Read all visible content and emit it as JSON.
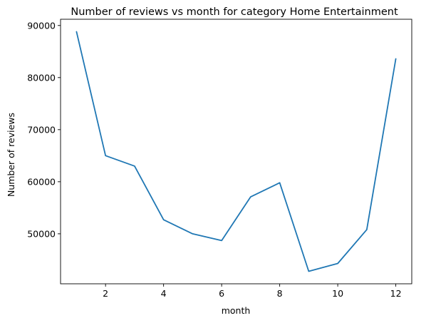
{
  "chart_data": {
    "type": "line",
    "title": "Number of reviews vs month for category Home Entertainment",
    "xlabel": "month",
    "ylabel": "Number of reviews",
    "xlim": [
      0.45,
      12.55
    ],
    "ylim": [
      40400,
      91200
    ],
    "xticks": [
      2,
      4,
      6,
      8,
      10,
      12
    ],
    "yticks": [
      50000,
      60000,
      70000,
      80000,
      90000
    ],
    "grid": false,
    "series": [
      {
        "color": "#1f77b4",
        "x": [
          1,
          2,
          3,
          4,
          5,
          6,
          7,
          8,
          9,
          10,
          11,
          12
        ],
        "y": [
          88800,
          65000,
          63000,
          52700,
          50000,
          48700,
          57100,
          59800,
          42800,
          44300,
          50800,
          83600
        ]
      }
    ]
  }
}
